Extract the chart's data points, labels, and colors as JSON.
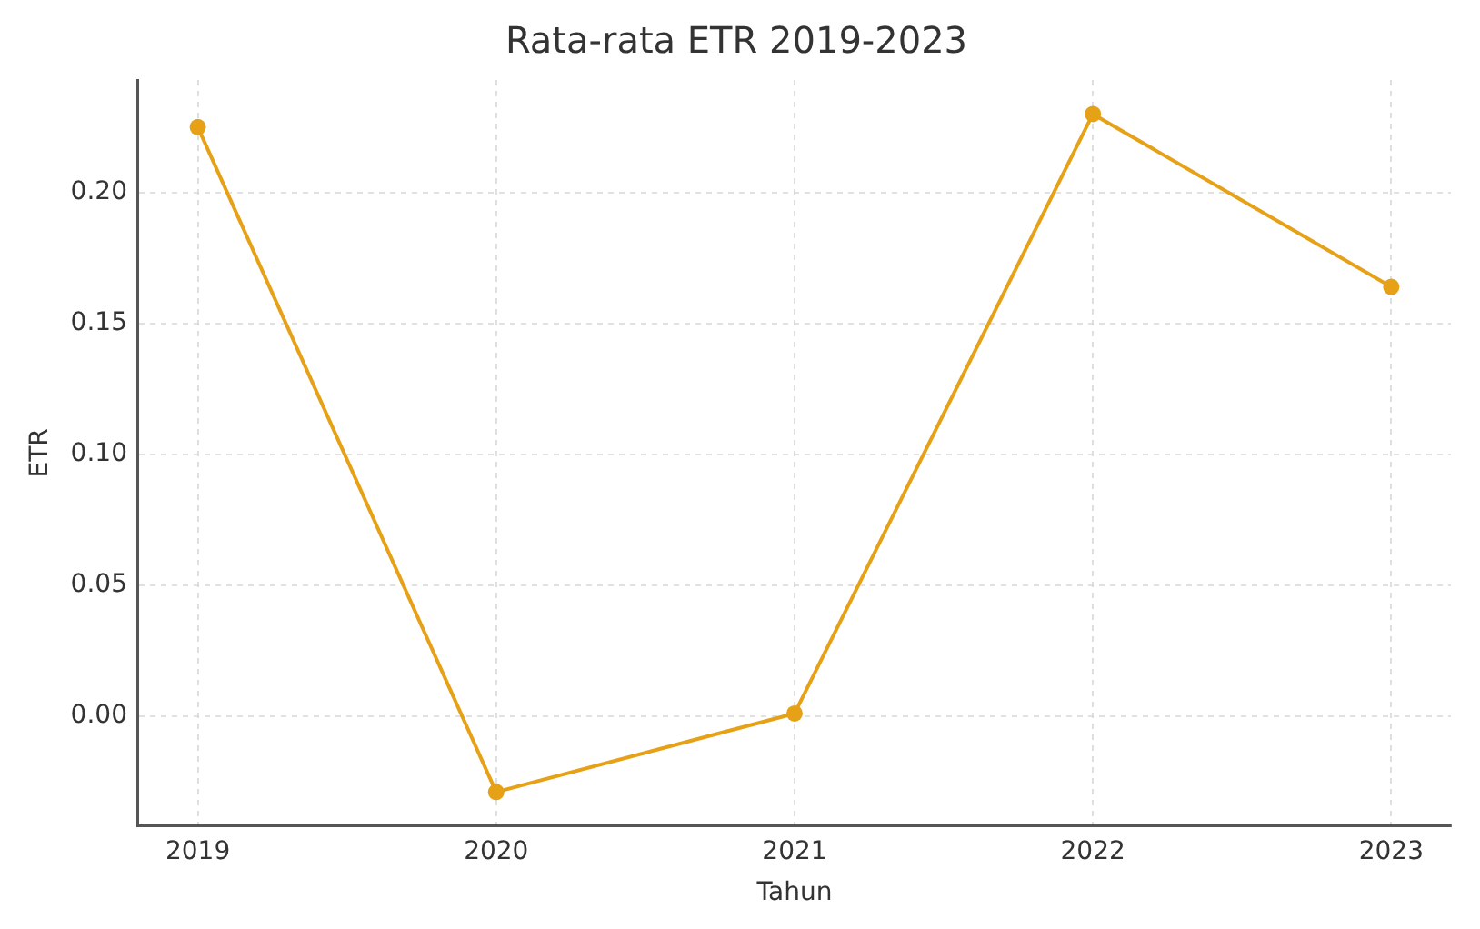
{
  "chart_data": {
    "type": "line",
    "title": "Rata-rata ETR 2019-2023",
    "xlabel": "Tahun",
    "ylabel": "ETR",
    "x": [
      2019,
      2020,
      2021,
      2022,
      2023
    ],
    "series": [
      {
        "color": "#e6a117",
        "values": [
          0.225,
          -0.029,
          0.001,
          0.23,
          0.164
        ]
      }
    ],
    "xlim": [
      2018.8,
      2023.2
    ],
    "xticks": [
      2019,
      2020,
      2021,
      2022,
      2023
    ],
    "ylim": [
      -0.042,
      0.243
    ],
    "yticks": [
      {
        "value": 0,
        "label": "0.00"
      },
      {
        "value": 0.05,
        "label": "0.05"
      },
      {
        "value": 0.1,
        "label": "0.10"
      },
      {
        "value": 0.15,
        "label": "0.15"
      },
      {
        "value": 0.2,
        "label": "0.20"
      }
    ],
    "grid": true,
    "marker": "circle",
    "line_style": "solid"
  }
}
